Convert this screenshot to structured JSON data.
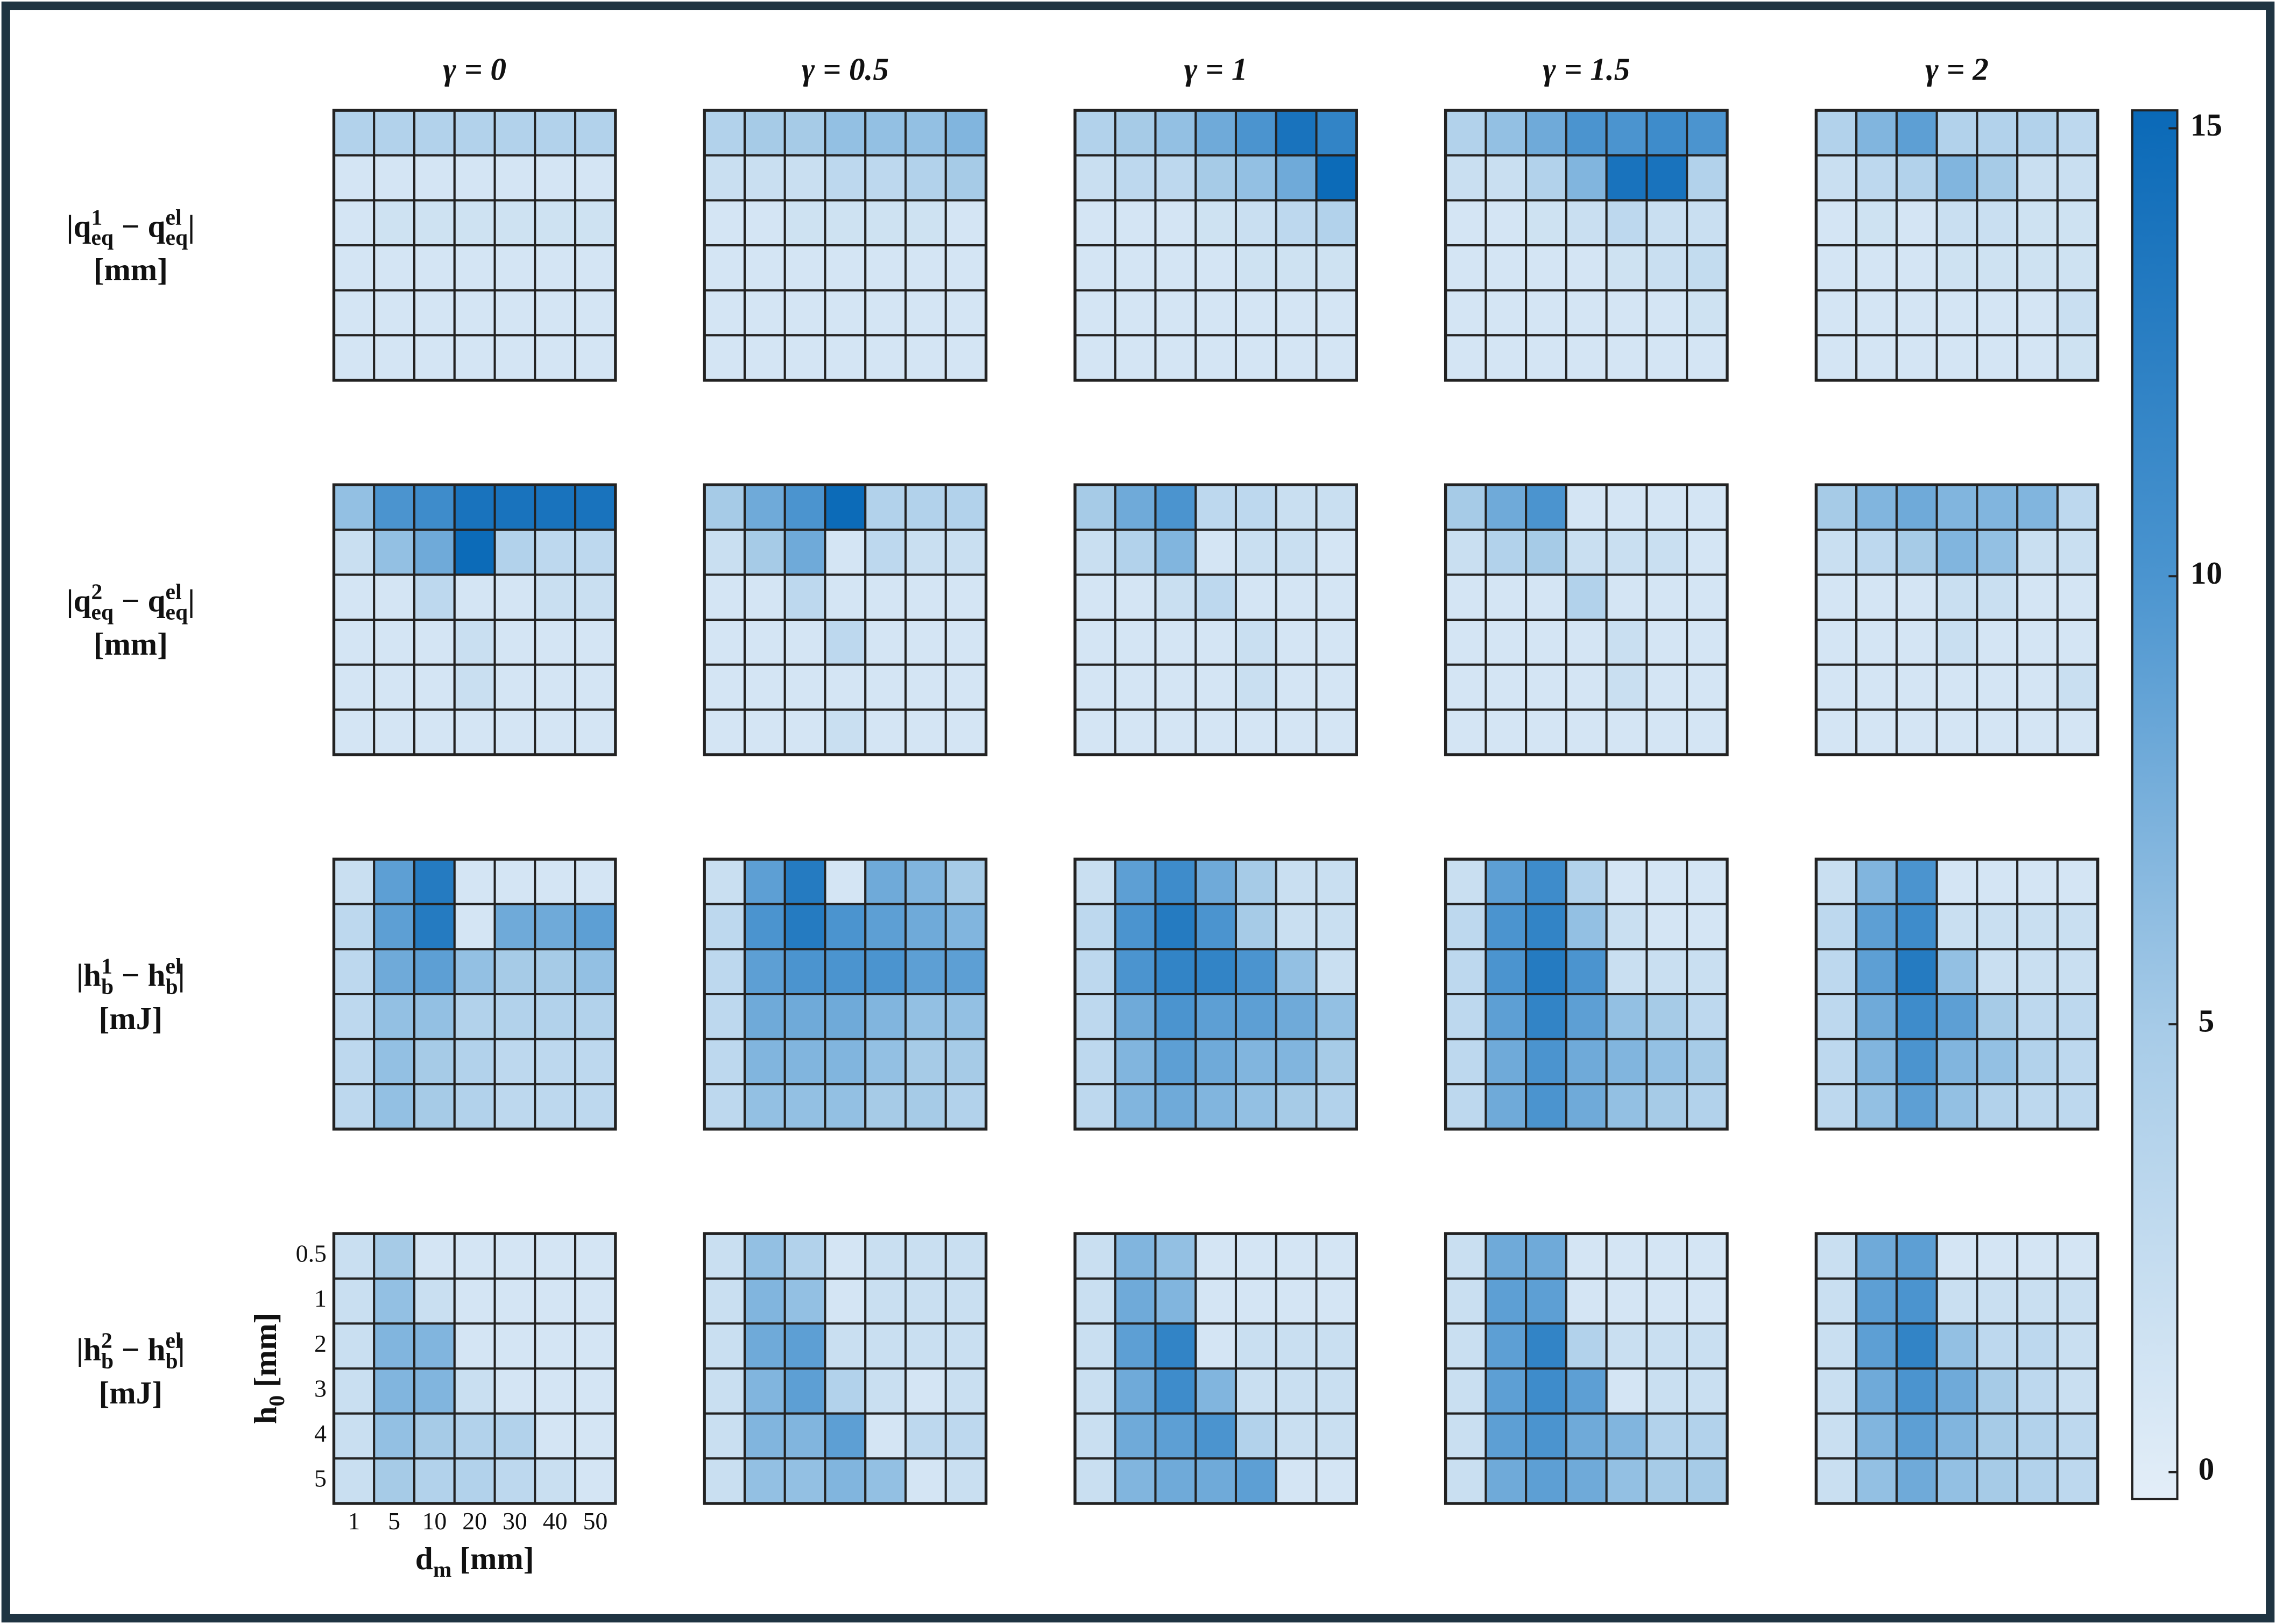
{
  "chart_data": {
    "type": "heatmap",
    "column_titles": [
      "γ = 0",
      "γ = 0.5",
      "γ = 1",
      "γ = 1.5",
      "γ = 2"
    ],
    "row_labels": [
      {
        "parts": [
          {
            "text": "|q"
          },
          {
            "sup": "1",
            "sub": "eq"
          },
          {
            "text": " − q"
          },
          {
            "sup": "el",
            "sub": "eq"
          },
          {
            "text": "|"
          }
        ],
        "unit": "[mm]"
      },
      {
        "parts": [
          {
            "text": "|q"
          },
          {
            "sup": "2",
            "sub": "eq"
          },
          {
            "text": " − q"
          },
          {
            "sup": "el",
            "sub": "eq"
          },
          {
            "text": "|"
          }
        ],
        "unit": "[mm]"
      },
      {
        "parts": [
          {
            "text": "|h"
          },
          {
            "sup": "1",
            "sub": "b"
          },
          {
            "text": " − h"
          },
          {
            "sup": "el",
            "sub": "b"
          },
          {
            "text": "|"
          }
        ],
        "unit": "[mJ]"
      },
      {
        "parts": [
          {
            "text": "|h"
          },
          {
            "sup": "2",
            "sub": "b"
          },
          {
            "text": " − h"
          },
          {
            "sup": "el",
            "sub": "b"
          },
          {
            "text": "|"
          }
        ],
        "unit": "[mJ]"
      }
    ],
    "x_categories": [
      1,
      5,
      10,
      20,
      30,
      40,
      50
    ],
    "y_categories": [
      0.5,
      1,
      2,
      3,
      4,
      5
    ],
    "x_label": [
      {
        "text": "d"
      },
      {
        "sub": "m"
      },
      {
        "text": " [mm]"
      }
    ],
    "y_label": [
      {
        "text": "h"
      },
      {
        "sub": "0"
      },
      {
        "text": " [mm]"
      }
    ],
    "colormap": [
      "#e3eef8",
      "#a8cce8",
      "#4a94cf",
      "#0a69b7"
    ],
    "clim": [
      -0.3,
      15.2
    ],
    "colorbar_ticks": [
      0,
      5,
      10,
      15
    ],
    "panels": [
      [
        [
          [
            4,
            4,
            4,
            4,
            4,
            4,
            4
          ],
          [
            1,
            1,
            1,
            1,
            1,
            1,
            1
          ],
          [
            1,
            1.5,
            1.5,
            1.5,
            1.5,
            1.5,
            1.5
          ],
          [
            1,
            1,
            1,
            1,
            1,
            1,
            1
          ],
          [
            1,
            1,
            1,
            1,
            1,
            1,
            1
          ],
          [
            1,
            1,
            1,
            1,
            1,
            1,
            1
          ]
        ],
        [
          [
            4,
            5,
            5,
            6,
            6,
            6,
            7
          ],
          [
            2,
            2,
            2,
            3,
            3,
            4,
            5
          ],
          [
            1,
            1,
            1.5,
            1.5,
            1.5,
            1.5,
            1
          ],
          [
            1,
            1,
            1,
            1,
            1,
            1,
            1
          ],
          [
            1,
            1,
            1,
            1,
            1,
            1,
            1
          ],
          [
            1,
            1,
            1,
            1,
            1,
            1,
            1
          ]
        ],
        [
          [
            4,
            5,
            6,
            8,
            10,
            14,
            12
          ],
          [
            2,
            3,
            3,
            5,
            6,
            8,
            15
          ],
          [
            1,
            1,
            1,
            1.5,
            2,
            3,
            4
          ],
          [
            1,
            1,
            1,
            1,
            1.5,
            1.5,
            1.5
          ],
          [
            1,
            1,
            1,
            1,
            1,
            1,
            1
          ],
          [
            1,
            1,
            1,
            1,
            1,
            1,
            1
          ]
        ],
        [
          [
            4,
            6,
            8,
            10,
            10,
            11,
            10
          ],
          [
            2,
            2,
            4,
            7,
            14,
            14,
            4
          ],
          [
            1,
            1,
            1.5,
            2,
            3,
            2,
            2
          ],
          [
            1,
            1,
            1,
            1,
            1.5,
            2,
            2.5
          ],
          [
            1,
            1,
            1,
            1,
            1,
            1,
            1.5
          ],
          [
            1,
            1,
            1,
            1,
            1,
            1,
            1
          ]
        ],
        [
          [
            4,
            7,
            9,
            4,
            4,
            4,
            3
          ],
          [
            2,
            3,
            4,
            7,
            5,
            2,
            2
          ],
          [
            1,
            1.5,
            1,
            2,
            2,
            1.5,
            1.5
          ],
          [
            1,
            1,
            1,
            1.5,
            1.5,
            1.5,
            1.5
          ],
          [
            1,
            1,
            1,
            1,
            1,
            1,
            2
          ],
          [
            1,
            1,
            1,
            1,
            1,
            1,
            1.5
          ]
        ]
      ],
      [
        [
          [
            6,
            10,
            11,
            14,
            14,
            14,
            14
          ],
          [
            2,
            6,
            8,
            15,
            4,
            3,
            3
          ],
          [
            1,
            1,
            3,
            1,
            1,
            2,
            2
          ],
          [
            1,
            1,
            1,
            2,
            1,
            1,
            1
          ],
          [
            1,
            1,
            1,
            2,
            1,
            1,
            1
          ],
          [
            1,
            1,
            1,
            1,
            1,
            1,
            1
          ]
        ],
        [
          [
            5,
            8,
            10,
            15,
            4,
            4,
            4
          ],
          [
            2,
            5,
            8,
            1,
            3,
            2,
            2
          ],
          [
            1,
            1,
            3,
            1,
            1,
            1,
            1
          ],
          [
            1,
            1,
            1,
            3,
            1,
            1,
            1
          ],
          [
            1,
            1,
            1,
            1,
            1,
            1,
            1
          ],
          [
            1,
            1,
            1,
            2,
            1,
            1,
            1
          ]
        ],
        [
          [
            5,
            8,
            10,
            3,
            3,
            2,
            2
          ],
          [
            2,
            4,
            7,
            1,
            2,
            2,
            1
          ],
          [
            1,
            1,
            2,
            3,
            1,
            1,
            1
          ],
          [
            1,
            1,
            1,
            1,
            2,
            1,
            1
          ],
          [
            1,
            1,
            1,
            1,
            2,
            1,
            1
          ],
          [
            1,
            1,
            1,
            1,
            1,
            1,
            1
          ]
        ],
        [
          [
            5,
            8,
            10,
            1,
            1,
            1,
            1
          ],
          [
            2,
            4,
            5,
            2,
            2,
            2,
            1
          ],
          [
            1,
            1,
            1,
            4,
            1,
            1,
            1
          ],
          [
            1,
            1,
            1,
            1,
            2,
            1,
            1
          ],
          [
            1,
            1,
            1,
            1,
            2,
            1,
            1
          ],
          [
            1,
            1,
            1,
            1,
            1,
            1,
            1
          ]
        ],
        [
          [
            5,
            7,
            8,
            7,
            7,
            7,
            3
          ],
          [
            2,
            3,
            5,
            7,
            6,
            2,
            2
          ],
          [
            1,
            1,
            1,
            2,
            2,
            1,
            1
          ],
          [
            1,
            1,
            1,
            2,
            1,
            1,
            1
          ],
          [
            1,
            1,
            1,
            1,
            1,
            1,
            2
          ],
          [
            1,
            1,
            1,
            1,
            1,
            1,
            1
          ]
        ]
      ],
      [
        [
          [
            2,
            9,
            13,
            1,
            1,
            1,
            1
          ],
          [
            3,
            9,
            13,
            1,
            8,
            8,
            9
          ],
          [
            3,
            8,
            9,
            6,
            5,
            5,
            6
          ],
          [
            3,
            6,
            6,
            4,
            4,
            4,
            4
          ],
          [
            3,
            6,
            5,
            4,
            3,
            3,
            3
          ],
          [
            3,
            6,
            5,
            4,
            3,
            3,
            3
          ]
        ],
        [
          [
            2,
            9,
            13,
            1,
            8,
            7,
            5
          ],
          [
            3,
            10,
            13,
            10,
            9,
            8,
            7
          ],
          [
            3,
            9,
            10,
            10,
            10,
            9,
            9
          ],
          [
            3,
            8,
            8,
            8,
            7,
            6,
            6
          ],
          [
            3,
            7,
            7,
            7,
            6,
            5,
            5
          ],
          [
            3,
            6,
            6,
            6,
            5,
            5,
            4
          ]
        ],
        [
          [
            2,
            9,
            11,
            8,
            5,
            2,
            2
          ],
          [
            3,
            10,
            13,
            10,
            5,
            2,
            2
          ],
          [
            3,
            10,
            12,
            12,
            10,
            6,
            2
          ],
          [
            3,
            8,
            10,
            9,
            9,
            8,
            6
          ],
          [
            3,
            7,
            9,
            8,
            7,
            7,
            5
          ],
          [
            3,
            7,
            8,
            7,
            6,
            5,
            4
          ]
        ],
        [
          [
            2,
            9,
            11,
            4,
            1,
            1,
            1
          ],
          [
            3,
            10,
            12,
            6,
            2,
            1,
            1
          ],
          [
            3,
            10,
            13,
            10,
            2,
            2,
            2
          ],
          [
            3,
            9,
            12,
            9,
            6,
            5,
            3
          ],
          [
            3,
            8,
            10,
            8,
            7,
            6,
            5
          ],
          [
            3,
            8,
            10,
            8,
            6,
            5,
            4
          ]
        ],
        [
          [
            2,
            7,
            10,
            1,
            1,
            1,
            1
          ],
          [
            3,
            9,
            11,
            2,
            2,
            2,
            2
          ],
          [
            3,
            9,
            13,
            6,
            2,
            2,
            2
          ],
          [
            3,
            8,
            11,
            9,
            5,
            3,
            3
          ],
          [
            3,
            7,
            10,
            7,
            6,
            4,
            3
          ],
          [
            3,
            6,
            9,
            6,
            4,
            3,
            3
          ]
        ]
      ],
      [
        [
          [
            2,
            5,
            1,
            1,
            1,
            1,
            1
          ],
          [
            2,
            6,
            2,
            1,
            1,
            1,
            1
          ],
          [
            2,
            7,
            7,
            1,
            1,
            1,
            1
          ],
          [
            2,
            7,
            7,
            2,
            1,
            1,
            1
          ],
          [
            2,
            6,
            5,
            4,
            4,
            1,
            1
          ],
          [
            2,
            5,
            4,
            4,
            3,
            2,
            1
          ]
        ],
        [
          [
            2,
            6,
            4,
            1,
            2,
            2,
            2
          ],
          [
            2,
            7,
            6,
            1,
            2,
            2,
            2
          ],
          [
            2,
            8,
            9,
            2,
            2,
            2,
            2
          ],
          [
            2,
            7,
            9,
            4,
            2,
            1,
            2
          ],
          [
            2,
            7,
            7,
            9,
            1,
            3,
            3
          ],
          [
            2,
            6,
            6,
            7,
            6,
            1,
            2
          ]
        ],
        [
          [
            2,
            7,
            6,
            1,
            1,
            1,
            1
          ],
          [
            2,
            8,
            7,
            1,
            1,
            1,
            1
          ],
          [
            2,
            9,
            12,
            1,
            2,
            2,
            2
          ],
          [
            2,
            8,
            11,
            7,
            2,
            2,
            2
          ],
          [
            2,
            8,
            9,
            10,
            4,
            2,
            2
          ],
          [
            2,
            7,
            8,
            8,
            9,
            1,
            1
          ]
        ],
        [
          [
            2,
            8,
            8,
            1,
            1,
            1,
            1
          ],
          [
            2,
            9,
            9,
            1,
            1,
            1,
            1
          ],
          [
            2,
            9,
            12,
            4,
            2,
            2,
            2
          ],
          [
            2,
            9,
            11,
            9,
            1,
            2,
            2
          ],
          [
            2,
            9,
            10,
            8,
            7,
            4,
            4
          ],
          [
            2,
            8,
            9,
            8,
            6,
            5,
            5
          ]
        ],
        [
          [
            2,
            8,
            9,
            1,
            1,
            1,
            1
          ],
          [
            2,
            9,
            10,
            2,
            2,
            2,
            2
          ],
          [
            2,
            9,
            12,
            6,
            3,
            3,
            2
          ],
          [
            2,
            8,
            10,
            8,
            5,
            3,
            2
          ],
          [
            2,
            7,
            9,
            7,
            5,
            4,
            3
          ],
          [
            2,
            6,
            8,
            6,
            5,
            4,
            3
          ]
        ]
      ]
    ]
  }
}
